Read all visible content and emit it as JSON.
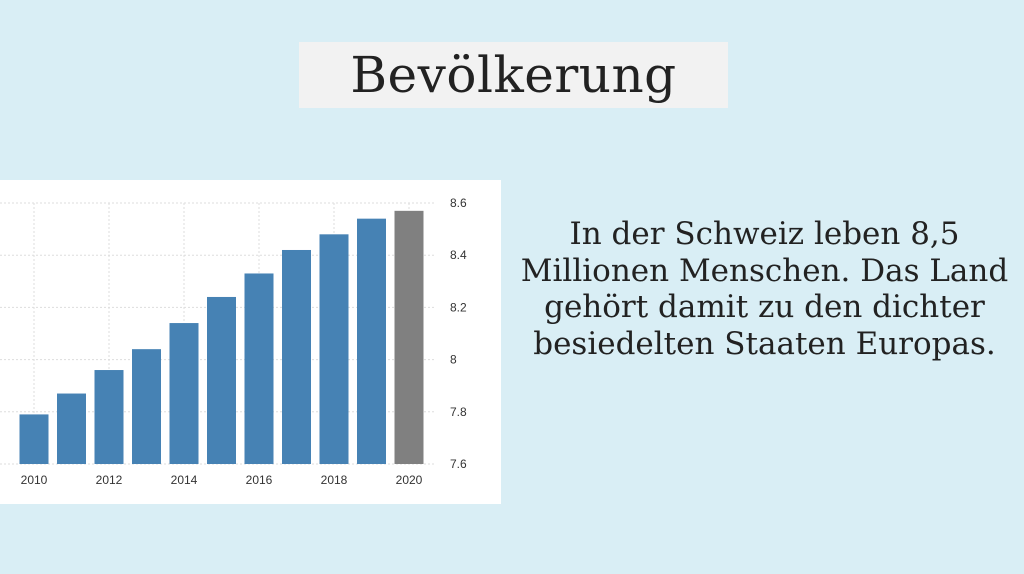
{
  "slide": {
    "title": "Bevölkerung",
    "body_text": "In der Schweiz leben 8,5 Millionen Menschen. Das Land gehört damit zu den dichter besiedelten Staaten Europas.",
    "background_color": "#d9eef5",
    "title_background_color": "#f2f2f2"
  },
  "chart_data": {
    "type": "bar",
    "categories": [
      "2010",
      "2011",
      "2012",
      "2013",
      "2014",
      "2015",
      "2016",
      "2017",
      "2018",
      "2019",
      "2020"
    ],
    "values": [
      7.79,
      7.87,
      7.96,
      8.04,
      8.14,
      8.24,
      8.33,
      8.42,
      8.48,
      8.54,
      8.57
    ],
    "bar_colors": [
      "#4682b4",
      "#4682b4",
      "#4682b4",
      "#4682b4",
      "#4682b4",
      "#4682b4",
      "#4682b4",
      "#4682b4",
      "#4682b4",
      "#4682b4",
      "#808080"
    ],
    "x_tick_labels": [
      "2010",
      "2012",
      "2014",
      "2016",
      "2018",
      "2020"
    ],
    "y_tick_labels": [
      "8.6",
      "8.4",
      "8.2",
      "8",
      "7.8",
      "7.6"
    ],
    "y_ticks": [
      8.6,
      8.4,
      8.2,
      8.0,
      7.8,
      7.6
    ],
    "ylim": [
      7.6,
      8.6
    ],
    "y_axis_position": "right",
    "grid": true,
    "title": "",
    "xlabel": "",
    "ylabel": ""
  }
}
